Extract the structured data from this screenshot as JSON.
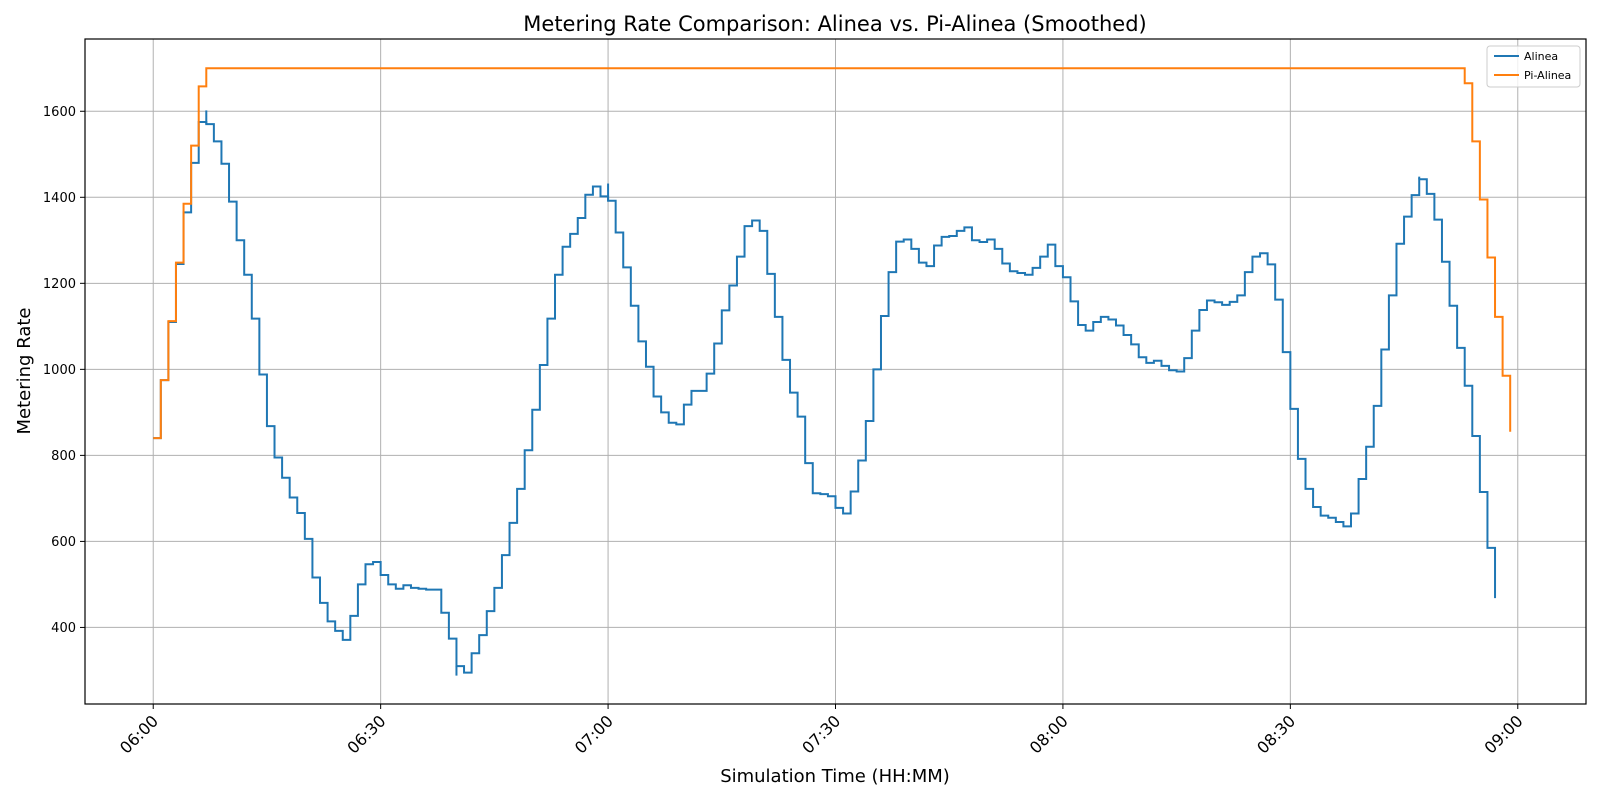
{
  "chart_data": {
    "type": "line",
    "title": "Metering Rate Comparison: Alinea vs. Pi-Alinea (Smoothed)",
    "xlabel": "Simulation Time (HH:MM)",
    "ylabel": "Metering Rate",
    "x_ticks": [
      "06:00",
      "06:30",
      "07:00",
      "07:30",
      "08:00",
      "08:30",
      "09:00"
    ],
    "x_tick_values": [
      0,
      30,
      60,
      90,
      120,
      150,
      180
    ],
    "y_ticks": [
      "400",
      "600",
      "800",
      "1000",
      "1200",
      "1400",
      "1600"
    ],
    "y_tick_values": [
      400,
      600,
      800,
      1000,
      1200,
      1400,
      1600
    ],
    "xlim": [
      -9,
      189
    ],
    "ylim": [
      222,
      1768
    ],
    "grid": true,
    "legend_position": "top-right",
    "step": true,
    "series": [
      {
        "name": "Alinea",
        "color": "#1f77b4",
        "x_start": 0,
        "x_step": 1,
        "values": [
          840,
          975,
          1110,
          1245,
          1365,
          1480,
          1575,
          1570,
          1530,
          1478,
          1390,
          1300,
          1220,
          1118,
          988,
          868,
          795,
          748,
          702,
          666,
          606,
          516,
          457,
          414,
          392,
          371,
          427,
          500,
          547,
          552,
          522,
          500,
          490,
          498,
          492,
          490,
          488,
          488,
          434,
          374,
          310,
          295,
          340,
          382,
          438,
          492,
          568,
          643,
          722,
          812,
          906,
          1010,
          1118,
          1220,
          1285,
          1315,
          1352,
          1406,
          1425,
          1402,
          1392,
          1318,
          1237,
          1148,
          1065,
          1006,
          937,
          900,
          876,
          872,
          918,
          950,
          950,
          990,
          1060,
          1137,
          1195,
          1262,
          1333,
          1346,
          1322,
          1222,
          1122,
          1022,
          946,
          890,
          782,
          712,
          710,
          705,
          678,
          665,
          716,
          788,
          880,
          1000,
          1124,
          1226,
          1297,
          1302,
          1280,
          1248,
          1240,
          1288,
          1308,
          1310,
          1322,
          1330,
          1300,
          1296,
          1302,
          1280,
          1246,
          1228,
          1224,
          1220,
          1236,
          1262,
          1290,
          1240,
          1214,
          1158,
          1103,
          1090,
          1110,
          1122,
          1116,
          1102,
          1080,
          1058,
          1028,
          1015,
          1020,
          1008,
          998,
          995,
          1026,
          1090,
          1138,
          1160,
          1156,
          1150,
          1157,
          1172,
          1226,
          1262,
          1270,
          1244,
          1162,
          1040,
          908,
          792,
          722,
          680,
          660,
          655,
          645,
          635,
          665,
          745,
          820,
          915,
          1046,
          1172,
          1292,
          1355,
          1405,
          1442,
          1408,
          1348,
          1250,
          1148,
          1050,
          962,
          845,
          715,
          585,
          468
        ],
        "spikes": [
          {
            "x": 7,
            "value": 1602
          },
          {
            "x": 40,
            "value": 288
          },
          {
            "x": 60,
            "value": 1432
          },
          {
            "x": 167,
            "value": 1448
          }
        ]
      },
      {
        "name": "Pi-Alinea",
        "color": "#ff7f0e",
        "x_start": 0,
        "x_step": 1,
        "values": [
          840,
          975,
          1112,
          1248,
          1385,
          1520,
          1658,
          1700,
          1700,
          1700,
          1700,
          1700,
          1700,
          1700,
          1700,
          1700,
          1700,
          1700,
          1700,
          1700,
          1700,
          1700,
          1700,
          1700,
          1700,
          1700,
          1700,
          1700,
          1700,
          1700,
          1700,
          1700,
          1700,
          1700,
          1700,
          1700,
          1700,
          1700,
          1700,
          1700,
          1700,
          1700,
          1700,
          1700,
          1700,
          1700,
          1700,
          1700,
          1700,
          1700,
          1700,
          1700,
          1700,
          1700,
          1700,
          1700,
          1700,
          1700,
          1700,
          1700,
          1700,
          1700,
          1700,
          1700,
          1700,
          1700,
          1700,
          1700,
          1700,
          1700,
          1700,
          1700,
          1700,
          1700,
          1700,
          1700,
          1700,
          1700,
          1700,
          1700,
          1700,
          1700,
          1700,
          1700,
          1700,
          1700,
          1700,
          1700,
          1700,
          1700,
          1700,
          1700,
          1700,
          1700,
          1700,
          1700,
          1700,
          1700,
          1700,
          1700,
          1700,
          1700,
          1700,
          1700,
          1700,
          1700,
          1700,
          1700,
          1700,
          1700,
          1700,
          1700,
          1700,
          1700,
          1700,
          1700,
          1700,
          1700,
          1700,
          1700,
          1700,
          1700,
          1700,
          1700,
          1700,
          1700,
          1700,
          1700,
          1700,
          1700,
          1700,
          1700,
          1700,
          1700,
          1700,
          1700,
          1700,
          1700,
          1700,
          1700,
          1700,
          1700,
          1700,
          1700,
          1700,
          1700,
          1700,
          1700,
          1700,
          1700,
          1700,
          1700,
          1700,
          1700,
          1700,
          1700,
          1700,
          1700,
          1700,
          1700,
          1700,
          1700,
          1700,
          1700,
          1700,
          1700,
          1700,
          1700,
          1700,
          1700,
          1700,
          1700,
          1700,
          1665,
          1530,
          1395,
          1260,
          1122,
          985,
          855
        ]
      }
    ]
  }
}
